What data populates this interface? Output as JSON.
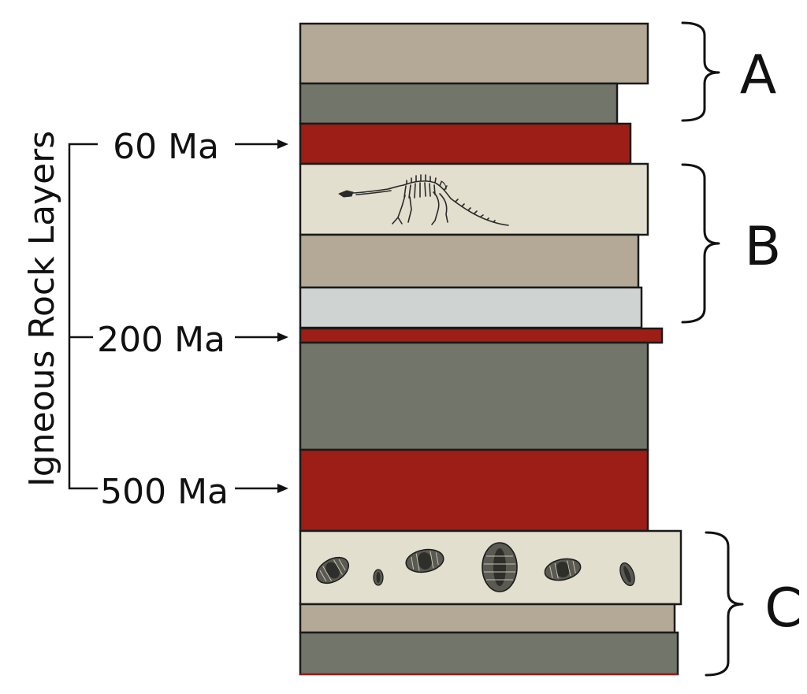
{
  "side_label": "Igneous Rock Layers",
  "ages": [
    {
      "label": "60 Ma"
    },
    {
      "label": "200 Ma"
    },
    {
      "label": "500 Ma"
    }
  ],
  "groups": [
    {
      "label": "A"
    },
    {
      "label": "B"
    },
    {
      "label": "C"
    }
  ],
  "layers": [
    {
      "name": "tan",
      "color": "#b4a996"
    },
    {
      "name": "dark-gray",
      "color": "#72766a"
    },
    {
      "name": "igneous-red",
      "color": "#9c1e16"
    },
    {
      "name": "cream-dinosaur",
      "color": "#e2dfcf"
    },
    {
      "name": "tan",
      "color": "#b4a996"
    },
    {
      "name": "light-gray",
      "color": "#cfd4d2"
    },
    {
      "name": "igneous-red-thin",
      "color": "#9c1e16"
    },
    {
      "name": "dark-gray-thick",
      "color": "#72766a"
    },
    {
      "name": "igneous-red-thick",
      "color": "#9c1e16"
    },
    {
      "name": "cream-trilobites",
      "color": "#e2dfcf"
    },
    {
      "name": "tan",
      "color": "#b4a996"
    },
    {
      "name": "dark-gray",
      "color": "#72766a"
    }
  ],
  "fossils": {
    "upper": "dinosaur-skeleton-icon",
    "lower": "trilobite-icon"
  }
}
